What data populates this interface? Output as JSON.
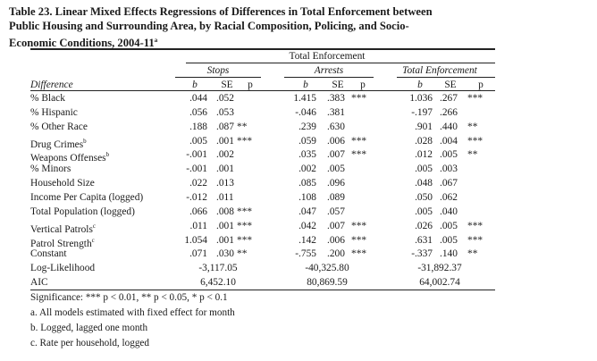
{
  "title": {
    "line1": "Table 23.  Linear Mixed Effects Regressions of Differences in Total Enforcement between",
    "line2": "Public Housing and Surrounding Area, by  Racial Composition, Policing,  and Socio-",
    "line3": "Economic Conditions, 2004-11",
    "sup": "a"
  },
  "header": {
    "spanner": "Total Enforcement",
    "groups": [
      "Stops",
      "Arrests",
      "Total Enforcement"
    ],
    "row_header": "Difference",
    "col_b": "b",
    "col_se": "SE",
    "col_p": "p"
  },
  "rows": [
    {
      "label": "% Black",
      "sup": "",
      "cells": [
        [
          ".044",
          ".052",
          ""
        ],
        [
          "1.415",
          ".383",
          "***"
        ],
        [
          "1.036",
          ".267",
          "***"
        ]
      ]
    },
    {
      "label": "% Hispanic",
      "sup": "",
      "cells": [
        [
          ".056",
          ".053",
          ""
        ],
        [
          "-.046",
          ".381",
          ""
        ],
        [
          "-.197",
          ".266",
          ""
        ]
      ]
    },
    {
      "label": "% Other Race",
      "sup": "",
      "cells": [
        [
          ".188",
          ".087",
          "**"
        ],
        [
          ".239",
          ".630",
          ""
        ],
        [
          ".901",
          ".440",
          "**"
        ]
      ]
    },
    {
      "label": "Drug Crimes",
      "sup": "b",
      "cells": [
        [
          ".005",
          ".001",
          "***"
        ],
        [
          ".059",
          ".006",
          "***"
        ],
        [
          ".028",
          ".004",
          "***"
        ]
      ]
    },
    {
      "label": "Weapons Offenses",
      "sup": "b",
      "cells": [
        [
          "-.001",
          ".002",
          ""
        ],
        [
          ".035",
          ".007",
          "***"
        ],
        [
          ".012",
          ".005",
          "**"
        ]
      ]
    },
    {
      "label": "% Minors",
      "sup": "",
      "cells": [
        [
          "-.001",
          ".001",
          ""
        ],
        [
          ".002",
          ".005",
          ""
        ],
        [
          ".005",
          ".003",
          ""
        ]
      ]
    },
    {
      "label": "Household Size",
      "sup": "",
      "cells": [
        [
          ".022",
          ".013",
          ""
        ],
        [
          ".085",
          ".096",
          ""
        ],
        [
          ".048",
          ".067",
          ""
        ]
      ]
    },
    {
      "label": "Income Per Capita (logged)",
      "sup": "",
      "cells": [
        [
          "-.012",
          ".011",
          ""
        ],
        [
          ".108",
          ".089",
          ""
        ],
        [
          ".050",
          ".062",
          ""
        ]
      ]
    },
    {
      "label": "Total Population (logged)",
      "sup": "",
      "cells": [
        [
          ".066",
          ".008",
          "***"
        ],
        [
          ".047",
          ".057",
          ""
        ],
        [
          ".005",
          ".040",
          ""
        ]
      ]
    },
    {
      "label": "Vertical Patrols",
      "sup": "c",
      "cells": [
        [
          ".011",
          ".001",
          "***"
        ],
        [
          ".042",
          ".007",
          "***"
        ],
        [
          ".026",
          ".005",
          "***"
        ]
      ]
    },
    {
      "label": "Patrol Strength",
      "sup": "c",
      "cells": [
        [
          "1.054",
          ".001",
          "***"
        ],
        [
          ".142",
          ".006",
          "***"
        ],
        [
          ".631",
          ".005",
          "***"
        ]
      ]
    },
    {
      "label": "Constant",
      "sup": "",
      "cells": [
        [
          ".071",
          ".030",
          "**"
        ],
        [
          "-.755",
          ".200",
          "***"
        ],
        [
          "-.337",
          ".140",
          "**"
        ]
      ]
    }
  ],
  "stats": [
    {
      "label": "Log-Likelihood",
      "values": [
        "-3,117.05",
        "-40,325.80",
        "-31,892.37"
      ]
    },
    {
      "label": "AIC",
      "values": [
        "6,452.10",
        "80,869.59",
        "64,002.74"
      ]
    }
  ],
  "notes": [
    "Significance:  *** p < 0.01, ** p < 0.05, *  p < 0.1",
    "a. All models estimated with fixed effect for month",
    "b. Logged, lagged one month",
    "c. Rate per household, logged"
  ]
}
